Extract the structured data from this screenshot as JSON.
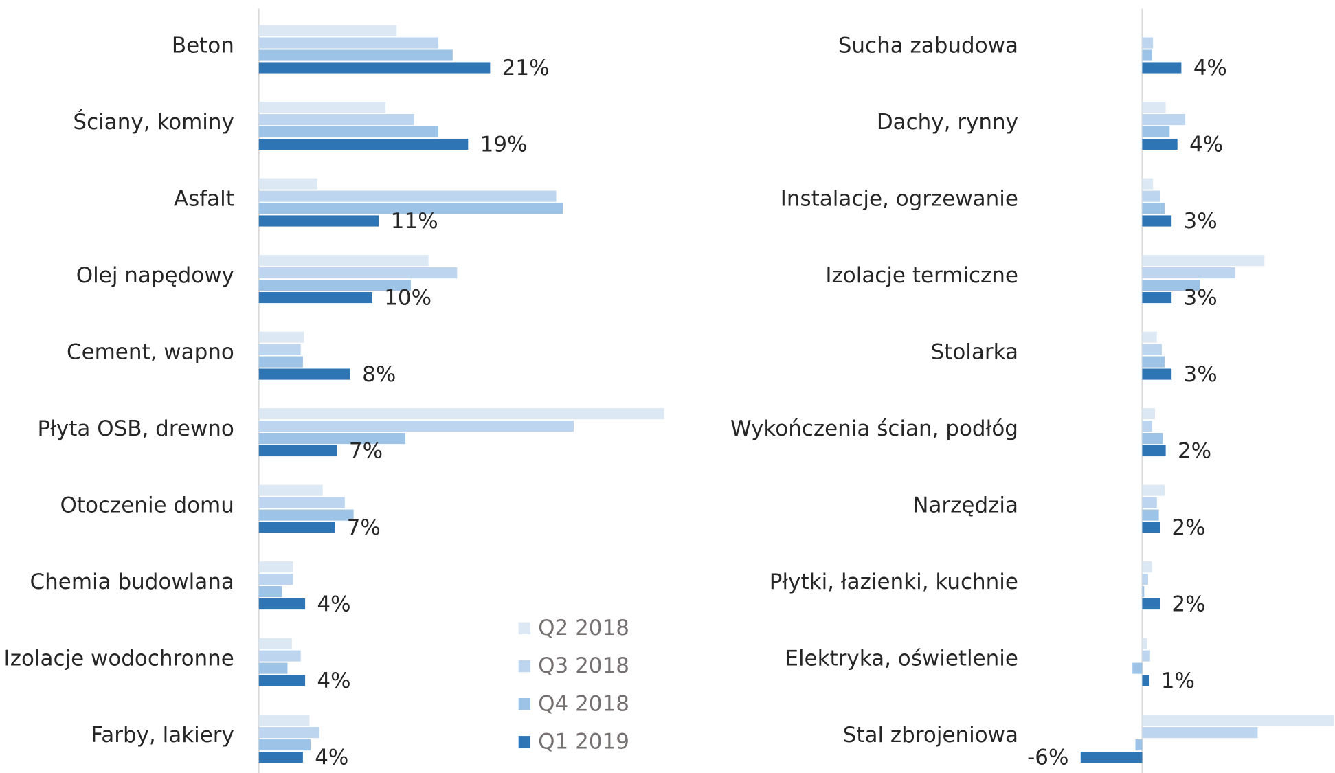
{
  "chart_data": [
    {
      "type": "bar",
      "orientation": "horizontal",
      "xlim": [
        0,
        38.5
      ],
      "categories": [
        "Beton",
        "Ściany, kominy",
        "Asfalt",
        "Olej napędowy",
        "Cement, wapno",
        "Płyta OSB, drewno",
        "Otoczenie domu",
        "Chemia budowlana",
        "Izolacje wodochronne",
        "Farby, lakiery"
      ],
      "series": [
        {
          "name": "Q2 2018",
          "color": "#dde8f5",
          "values": [
            12.5,
            11.5,
            5.3,
            15.4,
            4.1,
            36.8,
            5.8,
            3.1,
            3.0,
            4.6
          ]
        },
        {
          "name": "Q3 2018",
          "color": "#bdd5ee",
          "values": [
            16.3,
            14.1,
            27.0,
            18.0,
            3.8,
            28.6,
            7.8,
            3.1,
            3.8,
            5.5
          ]
        },
        {
          "name": "Q4 2018",
          "color": "#9dc3e6",
          "values": [
            17.6,
            16.3,
            27.6,
            13.8,
            4.0,
            13.3,
            8.6,
            2.1,
            2.6,
            4.7
          ]
        },
        {
          "name": "Q1 2019",
          "color": "#2e75b6",
          "values": [
            21.0,
            19.0,
            10.9,
            10.3,
            8.3,
            7.1,
            6.9,
            4.2,
            4.2,
            4.0
          ],
          "value_labels": [
            "21%",
            "19%",
            "11%",
            "10%",
            "8%",
            "7%",
            "7%",
            "4%",
            "4%",
            "4%"
          ]
        }
      ]
    },
    {
      "type": "bar",
      "orientation": "horizontal",
      "xlim": [
        -6.5,
        19.7
      ],
      "categories": [
        "Sucha zabudowa",
        "Dachy, rynny",
        "Instalacje, ogrzewanie",
        "Izolacje termiczne",
        "Stolarka",
        "Wykończenia ścian, podłóg",
        "Narzędzia",
        "Płytki, łazienki, kuchnie",
        "Elektryka, oświetlenie",
        "Stal zbrojeniowa"
      ],
      "series": [
        {
          "color": "#dde8f5",
          "values": [
            0,
            2.4,
            1.1,
            12.5,
            1.5,
            1.3,
            2.3,
            1.0,
            0.5,
            19.6
          ]
        },
        {
          "color": "#bdd5ee",
          "values": [
            1.1,
            4.4,
            1.8,
            9.5,
            2.0,
            1.0,
            1.5,
            0.6,
            0.8,
            11.8
          ]
        },
        {
          "color": "#9dc3e6",
          "values": [
            1.0,
            2.8,
            2.3,
            5.9,
            2.3,
            2.1,
            1.7,
            0.2,
            -1.0,
            -0.7
          ]
        },
        {
          "color": "#2e75b6",
          "values": [
            4.0,
            3.6,
            3.0,
            3.0,
            3.0,
            2.4,
            1.8,
            1.8,
            0.7,
            -6.3
          ],
          "value_labels": [
            "4%",
            "4%",
            "3%",
            "3%",
            "3%",
            "2%",
            "2%",
            "2%",
            "1%",
            "-6%"
          ]
        }
      ]
    }
  ]
}
